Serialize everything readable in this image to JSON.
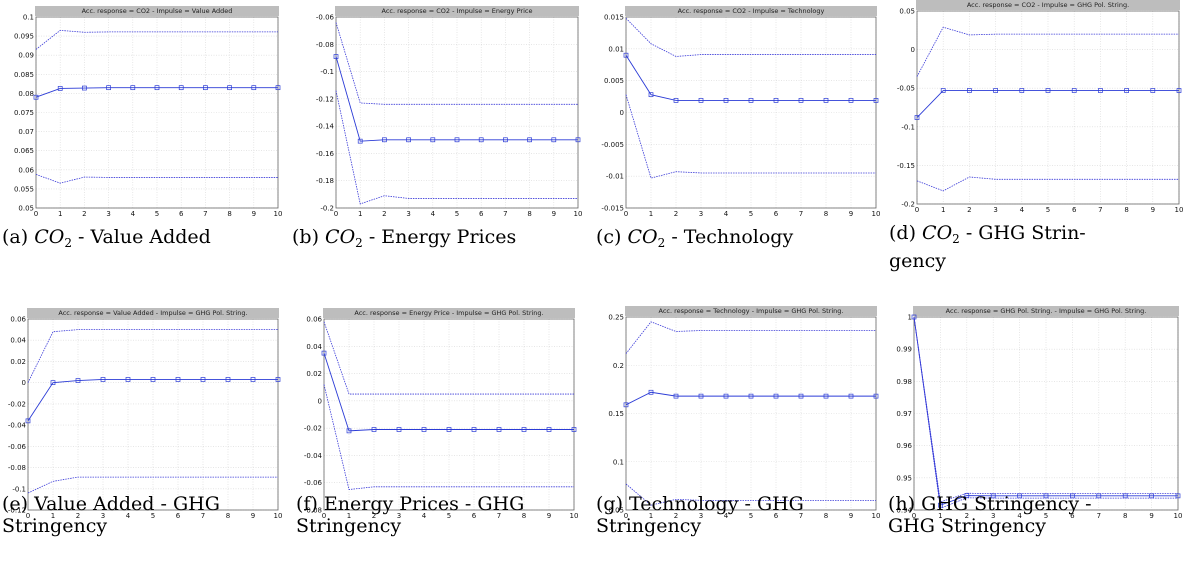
{
  "colors": {
    "line": "#2b3bd6",
    "band": "#3a3ad8",
    "frame": "#666666",
    "grid": "#d8d8d8",
    "titlebar": "#bdbdbd"
  },
  "chart_data": [
    {
      "type": "line",
      "title": "Acc. response = CO2 - Impulse = Value Added",
      "caption": {
        "label": "(a) ",
        "math": "CO",
        "sub": "2",
        "rest": " - Value Added",
        "line2": ""
      },
      "x": [
        0,
        1,
        2,
        3,
        4,
        5,
        6,
        7,
        8,
        9,
        10
      ],
      "ylim": [
        0.05,
        0.1
      ],
      "yticks": [
        "0.1",
        "0.095",
        "0.09",
        "0.085",
        "0.08",
        "0.075",
        "0.07",
        "0.065",
        "0.06",
        "0.055",
        "0.05"
      ],
      "series": [
        {
          "values": [
            0.079,
            0.0813,
            0.0814,
            0.0815,
            0.0815,
            0.0815,
            0.0815,
            0.0815,
            0.0815,
            0.0815,
            0.0815
          ]
        },
        {
          "values": [
            0.0915,
            0.0965,
            0.096,
            0.0961,
            0.0961,
            0.0961,
            0.0961,
            0.0961,
            0.0961,
            0.0961,
            0.0961
          ]
        },
        {
          "values": [
            0.0588,
            0.0565,
            0.0581,
            0.058,
            0.058,
            0.058,
            0.058,
            0.058,
            0.058,
            0.058,
            0.058
          ]
        }
      ]
    },
    {
      "type": "line",
      "title": "Acc. response = CO2 - Impulse = Energy Price",
      "caption": {
        "label": "(b) ",
        "math": "CO",
        "sub": "2",
        "rest": " - Energy Prices",
        "line2": ""
      },
      "x": [
        0,
        1,
        2,
        3,
        4,
        5,
        6,
        7,
        8,
        9,
        10
      ],
      "ylim": [
        -0.2,
        -0.06
      ],
      "yticks": [
        "-0.06",
        "-0.08",
        "-0.1",
        "-0.12",
        "-0.14",
        "-0.16",
        "-0.18",
        "-0.2"
      ],
      "series": [
        {
          "values": [
            -0.089,
            -0.151,
            -0.15,
            -0.15,
            -0.15,
            -0.15,
            -0.15,
            -0.15,
            -0.15,
            -0.15,
            -0.15
          ]
        },
        {
          "values": [
            -0.064,
            -0.123,
            -0.124,
            -0.124,
            -0.124,
            -0.124,
            -0.124,
            -0.124,
            -0.124,
            -0.124,
            -0.124
          ]
        },
        {
          "values": [
            -0.114,
            -0.197,
            -0.191,
            -0.193,
            -0.193,
            -0.193,
            -0.193,
            -0.193,
            -0.193,
            -0.193,
            -0.193
          ]
        }
      ]
    },
    {
      "type": "line",
      "title": "Acc. response = CO2 - Impulse = Technology",
      "caption": {
        "label": "(c) ",
        "math": "CO",
        "sub": "2",
        "rest": " - Technology",
        "line2": ""
      },
      "x": [
        0,
        1,
        2,
        3,
        4,
        5,
        6,
        7,
        8,
        9,
        10
      ],
      "ylim": [
        -0.015,
        0.015
      ],
      "yticks": [
        "0.015",
        "0.01",
        "0.005",
        "0",
        "-0.005",
        "-0.01",
        "-0.015"
      ],
      "series": [
        {
          "values": [
            0.009,
            0.0028,
            0.0019,
            0.0019,
            0.0019,
            0.0019,
            0.0019,
            0.0019,
            0.0019,
            0.0019,
            0.0019
          ]
        },
        {
          "values": [
            0.0148,
            0.0108,
            0.0088,
            0.0091,
            0.0091,
            0.0091,
            0.0091,
            0.0091,
            0.0091,
            0.0091,
            0.0091
          ]
        },
        {
          "values": [
            0.0028,
            -0.0103,
            -0.0093,
            -0.0095,
            -0.0095,
            -0.0095,
            -0.0095,
            -0.0095,
            -0.0095,
            -0.0095,
            -0.0095
          ]
        }
      ]
    },
    {
      "type": "line",
      "title": "Acc. response = CO2 - Impulse = GHG Pol. String.",
      "caption": {
        "label": "(d) ",
        "math": "CO",
        "sub": "2",
        "rest": " - GHG Strin-",
        "line2": "gency"
      },
      "x": [
        0,
        1,
        2,
        3,
        4,
        5,
        6,
        7,
        8,
        9,
        10
      ],
      "ylim": [
        -0.2,
        0.05
      ],
      "yticks": [
        "0.05",
        "0",
        "-0.05",
        "-0.1",
        "-0.15",
        "-0.2"
      ],
      "series": [
        {
          "values": [
            -0.088,
            -0.053,
            -0.053,
            -0.053,
            -0.053,
            -0.053,
            -0.053,
            -0.053,
            -0.053,
            -0.053,
            -0.053
          ]
        },
        {
          "values": [
            -0.035,
            0.029,
            0.019,
            0.02,
            0.02,
            0.02,
            0.02,
            0.02,
            0.02,
            0.02,
            0.02
          ]
        },
        {
          "values": [
            -0.17,
            -0.183,
            -0.165,
            -0.168,
            -0.168,
            -0.168,
            -0.168,
            -0.168,
            -0.168,
            -0.168,
            -0.168
          ]
        }
      ]
    },
    {
      "type": "line",
      "title": "Acc. response = Value Added - Impulse = GHG Pol. String.",
      "caption": {
        "label": "(e) ",
        "math": "",
        "sub": "",
        "rest": "Value Added - GHG",
        "line2": "Stringency"
      },
      "x": [
        0,
        1,
        2,
        3,
        4,
        5,
        6,
        7,
        8,
        9,
        10
      ],
      "ylim": [
        -0.12,
        0.06
      ],
      "yticks": [
        "0.06",
        "0.04",
        "0.02",
        "0",
        "-0.02",
        "-0.04",
        "-0.06",
        "-0.08",
        "-0.1",
        "-0.12"
      ],
      "series": [
        {
          "values": [
            -0.036,
            0.0,
            0.002,
            0.003,
            0.003,
            0.003,
            0.003,
            0.003,
            0.003,
            0.003,
            0.003
          ]
        },
        {
          "values": [
            0.0,
            0.048,
            0.05,
            0.05,
            0.05,
            0.05,
            0.05,
            0.05,
            0.05,
            0.05,
            0.05
          ]
        },
        {
          "values": [
            -0.104,
            -0.093,
            -0.089,
            -0.089,
            -0.089,
            -0.089,
            -0.089,
            -0.089,
            -0.089,
            -0.089,
            -0.089
          ]
        }
      ]
    },
    {
      "type": "line",
      "title": "Acc. response = Energy Price - Impulse = GHG Pol. String.",
      "caption": {
        "label": "(f) ",
        "math": "",
        "sub": "",
        "rest": "Energy Prices - GHG",
        "line2": "Stringency"
      },
      "x": [
        0,
        1,
        2,
        3,
        4,
        5,
        6,
        7,
        8,
        9,
        10
      ],
      "ylim": [
        -0.08,
        0.06
      ],
      "yticks": [
        "0.06",
        "0.04",
        "0.02",
        "0",
        "-0.02",
        "-0.04",
        "-0.06",
        "-0.08"
      ],
      "series": [
        {
          "values": [
            0.035,
            -0.022,
            -0.021,
            -0.021,
            -0.021,
            -0.021,
            -0.021,
            -0.021,
            -0.021,
            -0.021,
            -0.021
          ]
        },
        {
          "values": [
            0.058,
            0.005,
            0.005,
            0.005,
            0.005,
            0.005,
            0.005,
            0.005,
            0.005,
            0.005,
            0.005
          ]
        },
        {
          "values": [
            0.012,
            -0.065,
            -0.063,
            -0.063,
            -0.063,
            -0.063,
            -0.063,
            -0.063,
            -0.063,
            -0.063,
            -0.063
          ]
        }
      ]
    },
    {
      "type": "line",
      "title": "Acc. response = Technology - Impulse = GHG Pol. String.",
      "caption": {
        "label": "(g) ",
        "math": "",
        "sub": "",
        "rest": "Technology - GHG",
        "line2": "Stringency"
      },
      "x": [
        0,
        1,
        2,
        3,
        4,
        5,
        6,
        7,
        8,
        9,
        10
      ],
      "ylim": [
        0.05,
        0.25
      ],
      "yticks": [
        "0.25",
        "0.2",
        "0.15",
        "0.1",
        "0.05"
      ],
      "series": [
        {
          "values": [
            0.159,
            0.172,
            0.168,
            0.168,
            0.168,
            0.168,
            0.168,
            0.168,
            0.168,
            0.168,
            0.168
          ]
        },
        {
          "values": [
            0.212,
            0.245,
            0.235,
            0.236,
            0.236,
            0.236,
            0.236,
            0.236,
            0.236,
            0.236,
            0.236
          ]
        },
        {
          "values": [
            0.077,
            0.055,
            0.061,
            0.06,
            0.06,
            0.06,
            0.06,
            0.06,
            0.06,
            0.06,
            0.06
          ]
        }
      ]
    },
    {
      "type": "line",
      "title": "Acc. response = GHG Pol. String. - Impulse = GHG Pol. String.",
      "caption": {
        "label": "(h) ",
        "math": "",
        "sub": "",
        "rest": "GHG Stringency -",
        "line2": "GHG Stringency"
      },
      "x": [
        0,
        1,
        2,
        3,
        4,
        5,
        6,
        7,
        8,
        9,
        10
      ],
      "ylim": [
        0.94,
        1.0
      ],
      "yticks": [
        "1",
        "0.99",
        "0.98",
        "0.97",
        "0.96",
        "0.95",
        "0.94"
      ],
      "series": [
        {
          "values": [
            1.0,
            0.9415,
            0.9445,
            0.9444,
            0.9444,
            0.9444,
            0.9444,
            0.9444,
            0.9444,
            0.9444,
            0.9444
          ]
        },
        {
          "values": [
            1.0,
            0.9425,
            0.9452,
            0.9451,
            0.9451,
            0.9451,
            0.9451,
            0.9451,
            0.9451,
            0.9451,
            0.9451
          ]
        },
        {
          "values": [
            1.0,
            0.9405,
            0.9438,
            0.9437,
            0.9437,
            0.9437,
            0.9437,
            0.9437,
            0.9437,
            0.9437,
            0.9437
          ]
        }
      ]
    }
  ]
}
